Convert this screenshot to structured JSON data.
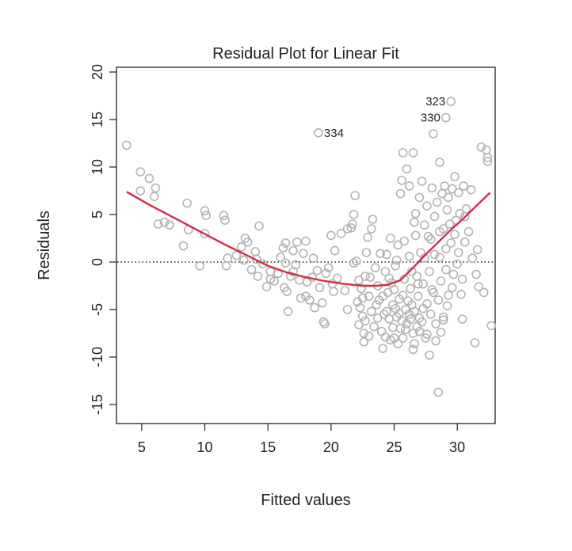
{
  "chart_data": {
    "type": "scatter",
    "title": "Residual Plot for Linear Fit",
    "xlabel": "Fitted values",
    "ylabel": "Residuals",
    "xlim": [
      3,
      33
    ],
    "ylim": [
      -17,
      20.5
    ],
    "xticks": [
      5,
      10,
      15,
      20,
      25,
      30
    ],
    "yticks": [
      -15,
      -10,
      -5,
      0,
      5,
      10,
      15,
      20
    ],
    "reference_line_y": 0,
    "point_color": "#b3b3b6",
    "curve_color": "#d62a44",
    "points": [
      [
        3.8,
        12.3
      ],
      [
        4.9,
        9.5
      ],
      [
        5.6,
        8.8
      ],
      [
        6.1,
        7.8
      ],
      [
        6.0,
        6.9
      ],
      [
        4.9,
        7.5
      ],
      [
        6.3,
        4.0
      ],
      [
        6.8,
        4.2
      ],
      [
        7.2,
        3.9
      ],
      [
        8.6,
        6.2
      ],
      [
        8.7,
        3.4
      ],
      [
        8.3,
        1.7
      ],
      [
        9.6,
        -0.4
      ],
      [
        10.0,
        5.4
      ],
      [
        10.1,
        4.9
      ],
      [
        10.0,
        3.0
      ],
      [
        11.5,
        4.9
      ],
      [
        11.6,
        4.4
      ],
      [
        11.8,
        0.4
      ],
      [
        11.7,
        -0.4
      ],
      [
        12.5,
        0.7
      ],
      [
        12.9,
        1.6
      ],
      [
        13.2,
        2.5
      ],
      [
        13.4,
        2.1
      ],
      [
        13.1,
        0.2
      ],
      [
        13.7,
        -0.8
      ],
      [
        14.1,
        0.3
      ],
      [
        14.3,
        3.8
      ],
      [
        14.0,
        1.1
      ],
      [
        14.2,
        -1.5
      ],
      [
        14.6,
        -0.2
      ],
      [
        14.9,
        -2.6
      ],
      [
        15.2,
        -1.8
      ],
      [
        15.5,
        -2.0
      ],
      [
        15.8,
        -1.2
      ],
      [
        16.0,
        0.5
      ],
      [
        16.2,
        1.5
      ],
      [
        16.4,
        2.0
      ],
      [
        16.3,
        -2.7
      ],
      [
        16.5,
        -3.1
      ],
      [
        16.6,
        -5.2
      ],
      [
        16.8,
        -1.5
      ],
      [
        17.0,
        1.2
      ],
      [
        17.2,
        -0.3
      ],
      [
        17.3,
        2.1
      ],
      [
        17.5,
        -1.9
      ],
      [
        17.6,
        -3.8
      ],
      [
        17.8,
        0.9
      ],
      [
        18.0,
        2.2
      ],
      [
        18.1,
        -2.1
      ],
      [
        18.3,
        -4.0
      ],
      [
        18.5,
        -1.6
      ],
      [
        18.6,
        0.4
      ],
      [
        18.7,
        -4.8
      ],
      [
        18.9,
        -0.9
      ],
      [
        19.1,
        -2.7
      ],
      [
        19.0,
        13.6
      ],
      [
        19.3,
        -4.3
      ],
      [
        19.4,
        -6.3
      ],
      [
        19.5,
        -6.5
      ],
      [
        19.6,
        -1.2
      ],
      [
        19.8,
        -0.6
      ],
      [
        20.0,
        2.8
      ],
      [
        20.2,
        -3.1
      ],
      [
        20.3,
        1.2
      ],
      [
        20.5,
        -1.7
      ],
      [
        20.8,
        3.0
      ],
      [
        21.1,
        -3.0
      ],
      [
        21.3,
        -5.0
      ],
      [
        21.3,
        3.5
      ],
      [
        21.6,
        3.6
      ],
      [
        21.7,
        4.0
      ],
      [
        21.8,
        5.0
      ],
      [
        21.9,
        7.0
      ],
      [
        22.0,
        0.1
      ],
      [
        22.2,
        -1.9
      ],
      [
        22.3,
        -4.8
      ],
      [
        22.5,
        -3.8
      ],
      [
        22.6,
        -7.5
      ],
      [
        22.6,
        -8.4
      ],
      [
        22.7,
        -1.5
      ],
      [
        22.8,
        1.0
      ],
      [
        22.9,
        2.6
      ],
      [
        23.0,
        -3.6
      ],
      [
        23.2,
        -5.2
      ],
      [
        23.2,
        3.5
      ],
      [
        23.3,
        4.5
      ],
      [
        23.4,
        -6.8
      ],
      [
        23.5,
        -0.6
      ],
      [
        23.7,
        -2.5
      ],
      [
        23.8,
        -4.0
      ],
      [
        24.0,
        -7.3
      ],
      [
        24.1,
        -9.1
      ],
      [
        24.2,
        -5.5
      ],
      [
        24.3,
        -1.0
      ],
      [
        24.4,
        0.8
      ],
      [
        24.5,
        -3.2
      ],
      [
        24.6,
        -6.0
      ],
      [
        24.7,
        2.5
      ],
      [
        24.8,
        -2.2
      ],
      [
        24.9,
        -4.5
      ],
      [
        25.0,
        -8.0
      ],
      [
        25.1,
        -0.4
      ],
      [
        25.2,
        -5.8
      ],
      [
        25.3,
        1.8
      ],
      [
        25.4,
        -3.9
      ],
      [
        25.5,
        -7.0
      ],
      [
        25.5,
        7.2
      ],
      [
        25.6,
        8.6
      ],
      [
        25.7,
        11.5
      ],
      [
        25.8,
        2.2
      ],
      [
        25.8,
        -1.8
      ],
      [
        25.9,
        -5.0
      ],
      [
        26.0,
        -6.5
      ],
      [
        26.0,
        9.8
      ],
      [
        26.2,
        8.0
      ],
      [
        26.2,
        0.6
      ],
      [
        26.3,
        -2.8
      ],
      [
        26.4,
        -4.5
      ],
      [
        26.5,
        -7.5
      ],
      [
        26.5,
        11.5
      ],
      [
        26.6,
        4.2
      ],
      [
        26.7,
        2.8
      ],
      [
        26.8,
        -1.5
      ],
      [
        26.9,
        -3.6
      ],
      [
        27.0,
        -5.9
      ],
      [
        27.0,
        6.8
      ],
      [
        27.1,
        1.0
      ],
      [
        27.2,
        8.5
      ],
      [
        27.3,
        -2.3
      ],
      [
        27.4,
        3.9
      ],
      [
        27.5,
        -8.0
      ],
      [
        27.6,
        -4.4
      ],
      [
        27.6,
        5.9
      ],
      [
        27.8,
        -1.0
      ],
      [
        27.9,
        2.4
      ],
      [
        28.0,
        7.8
      ],
      [
        28.1,
        13.5
      ],
      [
        28.1,
        -3.2
      ],
      [
        28.2,
        4.8
      ],
      [
        28.3,
        -6.5
      ],
      [
        28.4,
        6.3
      ],
      [
        28.5,
        -13.7
      ],
      [
        28.6,
        0.5
      ],
      [
        28.6,
        10.5
      ],
      [
        28.7,
        -2.0
      ],
      [
        28.8,
        7.2
      ],
      [
        28.9,
        3.5
      ],
      [
        29.0,
        8.0
      ],
      [
        29.1,
        -0.8
      ],
      [
        29.1,
        15.2
      ],
      [
        29.2,
        5.5
      ],
      [
        29.3,
        -3.5
      ],
      [
        29.3,
        6.8
      ],
      [
        29.5,
        16.9
      ],
      [
        29.5,
        2.0
      ],
      [
        29.6,
        7.7
      ],
      [
        29.7,
        -1.3
      ],
      [
        29.8,
        9.0
      ],
      [
        29.9,
        4.4
      ],
      [
        30.0,
        -0.2
      ],
      [
        30.1,
        7.3
      ],
      [
        30.2,
        5.1
      ],
      [
        30.3,
        -3.4
      ],
      [
        30.4,
        -6.0
      ],
      [
        30.5,
        8.0
      ],
      [
        30.6,
        2.1
      ],
      [
        30.7,
        5.6
      ],
      [
        31.2,
        0.4
      ],
      [
        31.4,
        -8.5
      ],
      [
        31.6,
        1.3
      ],
      [
        31.7,
        -2.6
      ],
      [
        31.9,
        12.1
      ],
      [
        32.1,
        -3.2
      ],
      [
        32.3,
        11.8
      ],
      [
        32.4,
        11.0
      ],
      [
        32.4,
        10.6
      ],
      [
        32.7,
        -6.7
      ],
      [
        15.2,
        -1.0
      ],
      [
        16.4,
        -0.1
      ],
      [
        17.0,
        -1.0
      ],
      [
        18.0,
        -3.6
      ],
      [
        20.1,
        -2.3
      ],
      [
        22.4,
        -2.8
      ],
      [
        22.5,
        -5.7
      ],
      [
        23.1,
        -1.6
      ],
      [
        23.7,
        -5.9
      ],
      [
        23.9,
        0.9
      ],
      [
        24.3,
        -7.9
      ],
      [
        24.6,
        -1.7
      ],
      [
        24.9,
        -6.9
      ],
      [
        25.0,
        -2.9
      ],
      [
        25.2,
        0.2
      ],
      [
        25.3,
        -8.6
      ],
      [
        25.6,
        -6.2
      ],
      [
        25.7,
        -3.5
      ],
      [
        25.9,
        -7.1
      ],
      [
        26.1,
        -4.1
      ],
      [
        26.3,
        -6.0
      ],
      [
        26.4,
        -1.0
      ],
      [
        26.6,
        -5.2
      ],
      [
        26.6,
        -8.6
      ],
      [
        26.7,
        5.1
      ],
      [
        26.9,
        -2.3
      ],
      [
        27.0,
        -7.3
      ],
      [
        27.3,
        -4.9
      ],
      [
        27.4,
        0.4
      ],
      [
        27.6,
        -7.6
      ],
      [
        27.7,
        2.7
      ],
      [
        27.9,
        -5.5
      ],
      [
        28.0,
        -2.9
      ],
      [
        28.2,
        0.8
      ],
      [
        28.5,
        -4.0
      ],
      [
        28.6,
        3.2
      ],
      [
        28.9,
        -5.8
      ],
      [
        29.1,
        1.4
      ],
      [
        29.2,
        -4.6
      ],
      [
        29.4,
        4.0
      ],
      [
        29.6,
        -2.7
      ],
      [
        29.8,
        2.9
      ],
      [
        30.1,
        1.0
      ],
      [
        30.4,
        -1.8
      ],
      [
        30.6,
        4.8
      ],
      [
        30.9,
        3.2
      ],
      [
        31.1,
        7.6
      ],
      [
        31.5,
        -1.3
      ],
      [
        21.8,
        -0.1
      ],
      [
        22.1,
        -4.2
      ],
      [
        22.2,
        -6.6
      ],
      [
        22.7,
        -6.2
      ],
      [
        23.0,
        -7.8
      ],
      [
        23.6,
        -4.5
      ],
      [
        24.1,
        -3.6
      ],
      [
        24.4,
        -5.2
      ],
      [
        24.7,
        -8.2
      ],
      [
        25.1,
        -4.9
      ],
      [
        25.4,
        -5.4
      ],
      [
        25.7,
        -8.0
      ],
      [
        26.2,
        -5.5
      ],
      [
        26.5,
        -9.2
      ],
      [
        26.8,
        -6.8
      ],
      [
        27.2,
        -6.3
      ],
      [
        27.8,
        -9.8
      ],
      [
        28.3,
        -8.3
      ],
      [
        28.7,
        -7.4
      ],
      [
        28.9,
        -6.1
      ]
    ],
    "smooth_curve": [
      [
        3.8,
        7.4
      ],
      [
        5.5,
        6.1
      ],
      [
        7.5,
        4.7
      ],
      [
        9.5,
        3.3
      ],
      [
        11.5,
        1.9
      ],
      [
        13.5,
        0.6
      ],
      [
        15.0,
        -0.4
      ],
      [
        16.5,
        -1.1
      ],
      [
        18.0,
        -1.6
      ],
      [
        19.5,
        -2.0
      ],
      [
        21.0,
        -2.3
      ],
      [
        22.5,
        -2.5
      ],
      [
        23.5,
        -2.5
      ],
      [
        24.5,
        -2.4
      ],
      [
        25.5,
        -1.9
      ],
      [
        26.5,
        -0.6
      ],
      [
        27.5,
        0.8
      ],
      [
        28.5,
        2.1
      ],
      [
        29.5,
        3.4
      ],
      [
        30.5,
        4.6
      ],
      [
        31.5,
        5.9
      ],
      [
        32.6,
        7.3
      ]
    ],
    "annotations": [
      {
        "label": "334",
        "x": 19.0,
        "y": 13.6,
        "side": "right"
      },
      {
        "label": "330",
        "x": 29.1,
        "y": 15.2,
        "side": "left"
      },
      {
        "label": "323",
        "x": 29.5,
        "y": 16.9,
        "side": "left"
      }
    ]
  }
}
